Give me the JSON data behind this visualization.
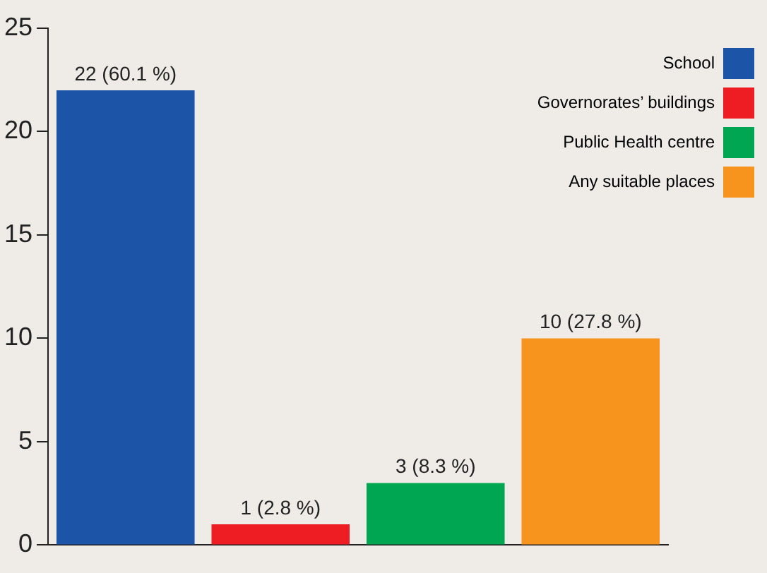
{
  "chart_data": {
    "type": "bar",
    "categories": [
      null,
      null,
      null,
      null
    ],
    "series": [
      {
        "name": "School",
        "color": "#1c55a8",
        "values": [
          22,
          null,
          null,
          null
        ],
        "value_labels": [
          "22 (60.1 %)",
          null,
          null,
          null
        ]
      },
      {
        "name": "Governorates’ buildings",
        "color": "#ee1d24",
        "values": [
          null,
          1,
          null,
          null
        ],
        "value_labels": [
          null,
          "1 (2.8 %)",
          null,
          null
        ]
      },
      {
        "name": "Public Health centre",
        "color": "#00a651",
        "values": [
          null,
          null,
          3,
          null
        ],
        "value_labels": [
          null,
          null,
          "3 (8.3 %)",
          null
        ]
      },
      {
        "name": "Any suitable places",
        "color": "#f7941d",
        "values": [
          null,
          null,
          null,
          10
        ],
        "value_labels": [
          null,
          null,
          null,
          "10 (27.8 %)"
        ]
      }
    ],
    "ylim": [
      0,
      25
    ],
    "yticks": [
      0,
      5,
      10,
      15,
      20,
      25
    ],
    "grid": false,
    "legend": "top right",
    "tick_labels": "y"
  }
}
